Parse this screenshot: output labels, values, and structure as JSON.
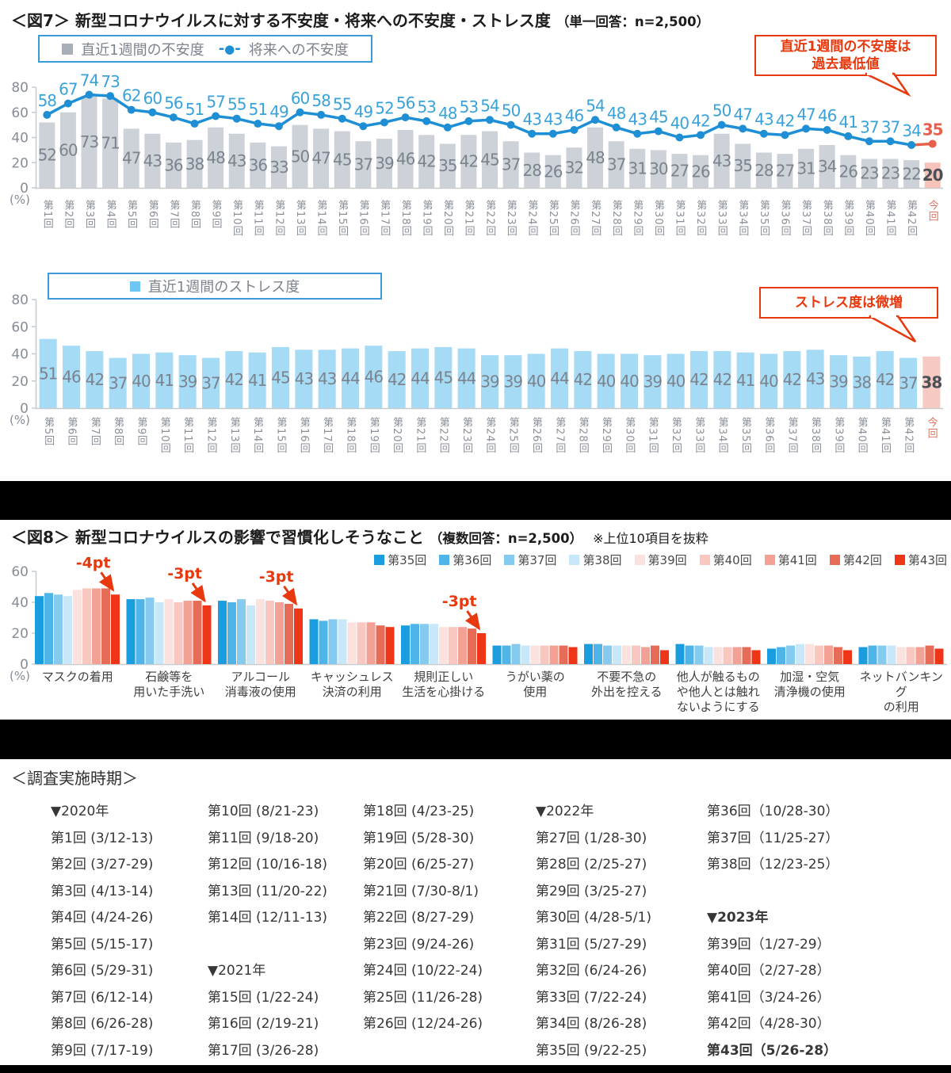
{
  "fig7": {
    "title_prefix": "＜図7＞",
    "title": "新型コロナウイルスに対する不安度・将来への不安度・ストレス度",
    "title_note": "（単一回答：n=2,500）",
    "legend": {
      "bar_label": "直近1週間の不安度",
      "line_label": "将来への不安度"
    },
    "callout_line1": "直近1週間の不安度は",
    "callout_line2": "過去最低値",
    "unit": "(%)"
  },
  "stress": {
    "legend_label": "直近1週間のストレス度",
    "callout": "ストレス度は微増",
    "unit": "(%)"
  },
  "fig8": {
    "title_prefix": "＜図8＞",
    "title": "新型コロナウイルスの影響で習慣化しそうなこと",
    "title_note": "（複数回答：n=2,500）",
    "title_note2": "※上位10項目を抜粋",
    "unit": "(%)"
  },
  "colors": {
    "accent_red": "#E8380D",
    "line_blue": "#1E8FD5",
    "line_label_blue": "#3AA2DB",
    "line_current_red": "#E8604C",
    "bar_gray": "#CDD2D9",
    "bar_current_pink": "#F5C3BA",
    "bar_label_gray": "#7C838D",
    "bar_label_current": "#4B5057",
    "stress_bar_blue": "#A5DBF5",
    "stress_bar_current_pink": "#F6CAC2",
    "axis_text": "#868D96",
    "axis_line": "#C6CACE"
  },
  "chart_data": [
    {
      "id": "fig7-anxiety",
      "type": "bar+line",
      "title": "新型コロナウイルスに対する不安度・将来への不安度",
      "ylabel": "(%)",
      "ylim": [
        0,
        80
      ],
      "yticks": [
        0,
        20,
        40,
        60,
        80
      ],
      "categories": [
        "第1回",
        "第2回",
        "第3回",
        "第4回",
        "第5回",
        "第6回",
        "第7回",
        "第8回",
        "第9回",
        "第10回",
        "第11回",
        "第12回",
        "第13回",
        "第14回",
        "第15回",
        "第16回",
        "第17回",
        "第18回",
        "第19回",
        "第20回",
        "第21回",
        "第22回",
        "第23回",
        "第24回",
        "第25回",
        "第26回",
        "第27回",
        "第28回",
        "第29回",
        "第30回",
        "第31回",
        "第32回",
        "第33回",
        "第34回",
        "第35回",
        "第36回",
        "第37回",
        "第38回",
        "第39回",
        "第40回",
        "第41回",
        "第42回",
        "今回"
      ],
      "series": [
        {
          "name": "直近1週間の不安度",
          "type": "bar",
          "values": [
            52,
            60,
            73,
            71,
            47,
            43,
            36,
            38,
            48,
            43,
            36,
            33,
            50,
            47,
            45,
            37,
            39,
            46,
            42,
            35,
            42,
            45,
            37,
            28,
            26,
            32,
            48,
            37,
            31,
            30,
            27,
            26,
            43,
            35,
            28,
            27,
            31,
            34,
            26,
            23,
            23,
            22,
            20
          ]
        },
        {
          "name": "将来への不安度",
          "type": "line",
          "values": [
            58,
            67,
            74,
            73,
            62,
            60,
            56,
            51,
            57,
            55,
            51,
            49,
            60,
            58,
            55,
            49,
            52,
            56,
            53,
            48,
            53,
            54,
            50,
            43,
            43,
            46,
            54,
            48,
            43,
            45,
            40,
            42,
            50,
            47,
            43,
            42,
            47,
            46,
            41,
            37,
            37,
            34,
            35
          ]
        }
      ]
    },
    {
      "id": "fig7-stress",
      "type": "bar",
      "title": "直近1週間のストレス度",
      "ylabel": "(%)",
      "ylim": [
        0,
        80
      ],
      "yticks": [
        0,
        20,
        40,
        60,
        80
      ],
      "categories": [
        "第5回",
        "第6回",
        "第7回",
        "第8回",
        "第9回",
        "第10回",
        "第11回",
        "第12回",
        "第13回",
        "第14回",
        "第15回",
        "第16回",
        "第17回",
        "第18回",
        "第19回",
        "第20回",
        "第21回",
        "第22回",
        "第23回",
        "第24回",
        "第25回",
        "第26回",
        "第27回",
        "第28回",
        "第29回",
        "第30回",
        "第31回",
        "第32回",
        "第33回",
        "第34回",
        "第35回",
        "第36回",
        "第37回",
        "第38回",
        "第39回",
        "第40回",
        "第41回",
        "第42回",
        "今回"
      ],
      "values": [
        51,
        46,
        42,
        37,
        40,
        41,
        39,
        37,
        42,
        41,
        45,
        43,
        43,
        44,
        46,
        42,
        44,
        45,
        44,
        39,
        39,
        40,
        44,
        42,
        40,
        40,
        39,
        40,
        42,
        42,
        41,
        40,
        42,
        43,
        39,
        38,
        42,
        37,
        38
      ]
    },
    {
      "id": "fig8-habits",
      "type": "bar",
      "title": "新型コロナウイルスの影響で習慣化しそうなこと",
      "ylabel": "(%)",
      "ylim": [
        0,
        60
      ],
      "yticks": [
        0,
        20,
        40,
        60
      ],
      "categories": [
        [
          "マスクの着用"
        ],
        [
          "石鹸等を",
          "用いた手洗い"
        ],
        [
          "アルコール",
          "消毒液の使用"
        ],
        [
          "キャッシュレス",
          "決済の利用"
        ],
        [
          "規則正しい",
          "生活を心掛ける"
        ],
        [
          "うがい薬の",
          "使用"
        ],
        [
          "不要不急の",
          "外出を控える"
        ],
        [
          "他人が触るもの",
          "や他人とは触れ",
          "ないようにする"
        ],
        [
          "加湿・空気",
          "清浄機の使用"
        ],
        [
          "ネットバンキング",
          "の利用"
        ]
      ],
      "series": [
        {
          "name": "第35回",
          "color": "#1A9DDE",
          "values": [
            44,
            42,
            41,
            29,
            25,
            12,
            13,
            13,
            10,
            11
          ]
        },
        {
          "name": "第36回",
          "color": "#4FB5E8",
          "values": [
            46,
            42,
            40,
            28,
            26,
            12,
            13,
            12,
            11,
            12
          ]
        },
        {
          "name": "第37回",
          "color": "#85CBF0",
          "values": [
            45,
            43,
            42,
            29,
            26,
            13,
            12,
            12,
            12,
            12
          ]
        },
        {
          "name": "第38回",
          "color": "#C8E7F8",
          "values": [
            44,
            40,
            38,
            29,
            26,
            12,
            12,
            11,
            13,
            12
          ]
        },
        {
          "name": "第39回",
          "color": "#FBE2DE",
          "values": [
            48,
            42,
            42,
            27,
            24,
            12,
            12,
            11,
            13,
            11
          ]
        },
        {
          "name": "第40回",
          "color": "#F8C8C0",
          "values": [
            49,
            40,
            41,
            27,
            24,
            12,
            12,
            11,
            12,
            11
          ]
        },
        {
          "name": "第41回",
          "color": "#F2A194",
          "values": [
            49,
            41,
            40,
            27,
            24,
            12,
            11,
            11,
            12,
            11
          ]
        },
        {
          "name": "第42回",
          "color": "#E76C57",
          "values": [
            49,
            41,
            39,
            25,
            23,
            12,
            12,
            11,
            11,
            12
          ]
        },
        {
          "name": "第43回",
          "color": "#EE3517",
          "values": [
            45,
            38,
            36,
            24,
            20,
            11,
            9,
            9,
            9,
            10
          ]
        }
      ],
      "annotations": [
        {
          "text": "-4pt",
          "category": 0
        },
        {
          "text": "-3pt",
          "category": 1
        },
        {
          "text": "-3pt",
          "category": 2
        },
        {
          "text": "-3pt",
          "category": 4
        }
      ]
    }
  ],
  "survey_periods": {
    "title": "＜調査実施時期＞",
    "columns": [
      [
        "▼2020年",
        "第1回 (3/12-13)",
        "第2回 (3/27-29)",
        "第3回 (4/13-14)",
        "第4回 (4/24-26)",
        "第5回 (5/15-17)",
        "第6回 (5/29-31)",
        "第7回 (6/12-14)",
        "第8回 (6/26-28)",
        "第9回 (7/17-19)"
      ],
      [
        "第10回 (8/21-23)",
        "第11回 (9/18-20)",
        "第12回 (10/16-18)",
        "第13回 (11/20-22)",
        "第14回 (12/11-13)",
        "",
        "▼2021年",
        "第15回 (1/22-24)",
        "第16回 (2/19-21)",
        "第17回 (3/26-28)"
      ],
      [
        "第18回 (4/23-25)",
        "第19回 (5/28-30)",
        "第20回 (6/25-27)",
        "第21回 (7/30-8/1)",
        "第22回 (8/27-29)",
        "第23回 (9/24-26)",
        "第24回 (10/22-24)",
        "第25回 (11/26-28)",
        "第26回 (12/24-26)",
        ""
      ],
      [
        "▼2022年",
        "第27回 (1/28-30)",
        "第28回 (2/25-27)",
        "第29回 (3/25-27)",
        "第30回 (4/28-5/1)",
        "第31回 (5/27-29)",
        "第32回 (6/24-26)",
        "第33回 (7/22-24)",
        "第34回 (8/26-28)",
        "第35回 (9/22-25)"
      ],
      [
        "第36回（10/28-30）",
        "第37回（11/25-27）",
        "第38回（12/23-25）",
        "",
        "▼2023年",
        "第39回（1/27-29）",
        "第40回（2/27-28）",
        "第41回（3/24-26）",
        "第42回（4/28-30）",
        "第43回（5/26-28）"
      ]
    ],
    "bold_cells": [
      "▼2023年",
      "第43回（5/26-28）"
    ]
  }
}
